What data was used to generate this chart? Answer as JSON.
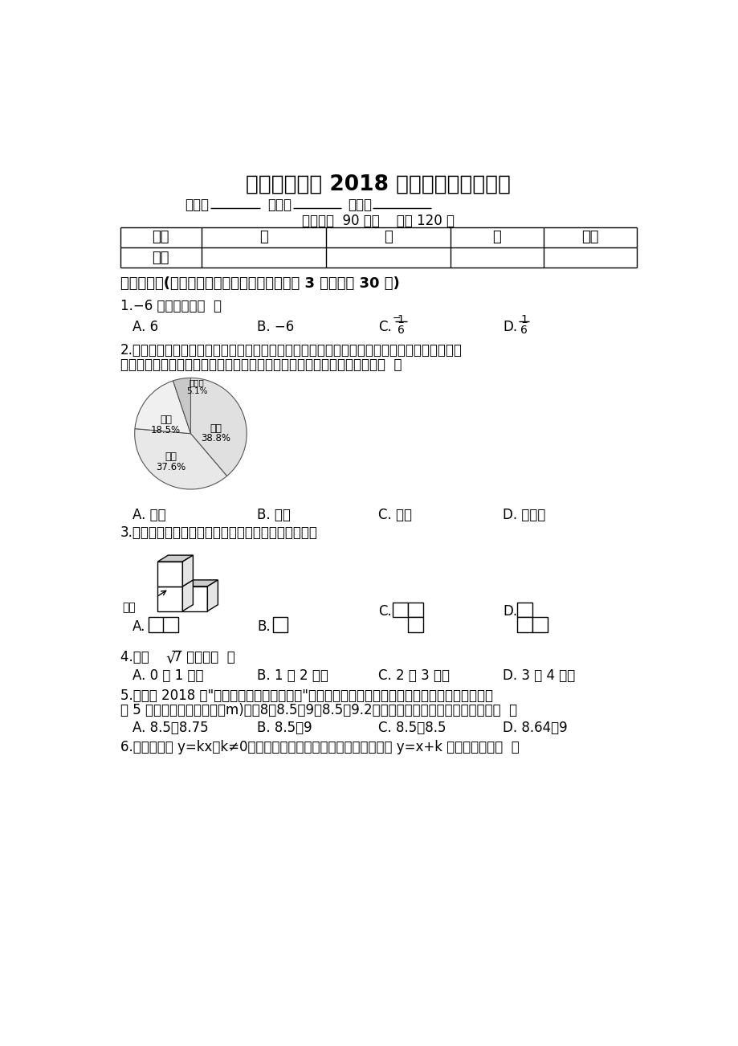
{
  "title": "湖南省邵阳县 2018 年中考数学一模试卷",
  "bg_color": "#ffffff",
  "figsize": [
    9.2,
    13.02
  ],
  "dpi": 100,
  "pie_pcts": [
    38.8,
    37.6,
    18.5,
    5.1
  ],
  "pie_colors": [
    "#e0e0e0",
    "#e8e8e8",
    "#f0f0f0",
    "#c8c8c8"
  ],
  "pie_labels_cn": [
    "小米",
    "魅族",
    "华为",
    "步步高"
  ],
  "pie_labels_pct": [
    "38.8%",
    "37.6%",
    "18.5%",
    "5.1%"
  ]
}
